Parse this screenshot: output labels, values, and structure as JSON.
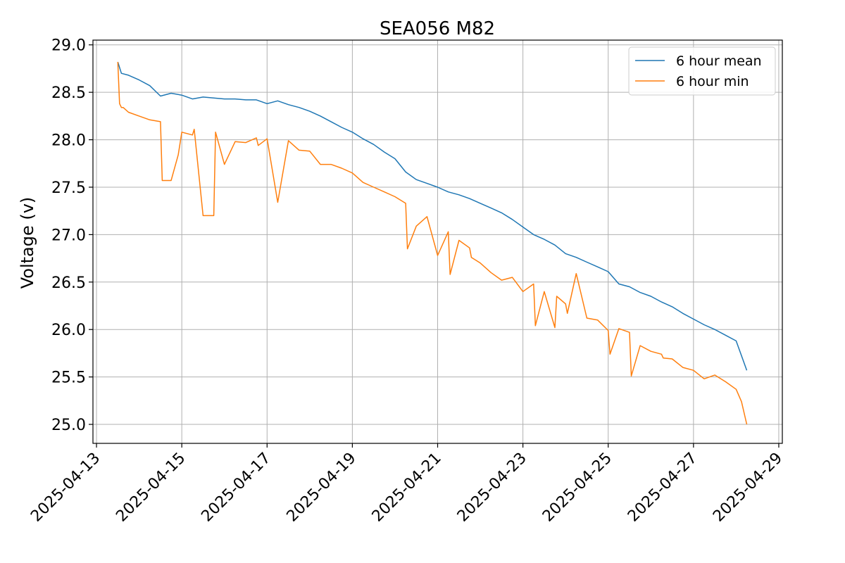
{
  "chart_data": {
    "type": "line",
    "title": "SEA056 M82",
    "xlabel": "",
    "ylabel": "Voltage (v)",
    "x_axis_type": "date",
    "xlim": [
      "2025-04-12 22:00",
      "2025-04-29 02:00"
    ],
    "ylim": [
      24.8,
      29.05
    ],
    "x_ticks": [
      "2025-04-13",
      "2025-04-15",
      "2025-04-17",
      "2025-04-19",
      "2025-04-21",
      "2025-04-23",
      "2025-04-25",
      "2025-04-27",
      "2025-04-29"
    ],
    "y_ticks": [
      "25.0",
      "25.5",
      "26.0",
      "26.5",
      "27.0",
      "27.5",
      "28.0",
      "28.5",
      "29.0"
    ],
    "grid": true,
    "legend_position": "top-right",
    "colors": {
      "mean": "#1f77b4",
      "min": "#ff7f0e"
    },
    "series": [
      {
        "name": "6 hour mean",
        "color": "#1f77b4",
        "x": [
          "2025-04-13 12:00",
          "2025-04-13 14:00",
          "2025-04-13 18:00",
          "2025-04-14 00:00",
          "2025-04-14 06:00",
          "2025-04-14 12:00",
          "2025-04-14 18:00",
          "2025-04-15 00:00",
          "2025-04-15 06:00",
          "2025-04-15 12:00",
          "2025-04-15 18:00",
          "2025-04-16 00:00",
          "2025-04-16 06:00",
          "2025-04-16 12:00",
          "2025-04-16 18:00",
          "2025-04-17 00:00",
          "2025-04-17 06:00",
          "2025-04-17 12:00",
          "2025-04-17 18:00",
          "2025-04-18 00:00",
          "2025-04-18 06:00",
          "2025-04-18 12:00",
          "2025-04-18 18:00",
          "2025-04-19 00:00",
          "2025-04-19 06:00",
          "2025-04-19 12:00",
          "2025-04-19 18:00",
          "2025-04-20 00:00",
          "2025-04-20 06:00",
          "2025-04-20 12:00",
          "2025-04-20 18:00",
          "2025-04-21 00:00",
          "2025-04-21 06:00",
          "2025-04-21 12:00",
          "2025-04-21 18:00",
          "2025-04-22 00:00",
          "2025-04-22 06:00",
          "2025-04-22 12:00",
          "2025-04-22 18:00",
          "2025-04-23 00:00",
          "2025-04-23 06:00",
          "2025-04-23 12:00",
          "2025-04-23 18:00",
          "2025-04-24 00:00",
          "2025-04-24 06:00",
          "2025-04-24 12:00",
          "2025-04-24 18:00",
          "2025-04-25 00:00",
          "2025-04-25 06:00",
          "2025-04-25 12:00",
          "2025-04-25 18:00",
          "2025-04-26 00:00",
          "2025-04-26 06:00",
          "2025-04-26 12:00",
          "2025-04-26 18:00",
          "2025-04-27 00:00",
          "2025-04-27 06:00",
          "2025-04-27 12:00",
          "2025-04-27 18:00",
          "2025-04-28 00:00",
          "2025-04-28 06:00"
        ],
        "y": [
          28.82,
          28.7,
          28.68,
          28.63,
          28.57,
          28.46,
          28.49,
          28.47,
          28.43,
          28.45,
          28.44,
          28.43,
          28.43,
          28.42,
          28.42,
          28.38,
          28.41,
          28.37,
          28.34,
          28.3,
          28.25,
          28.19,
          28.13,
          28.08,
          28.01,
          27.95,
          27.87,
          27.8,
          27.66,
          27.58,
          27.54,
          27.5,
          27.45,
          27.42,
          27.38,
          27.33,
          27.28,
          27.23,
          27.16,
          27.08,
          27.0,
          26.95,
          26.89,
          26.8,
          26.76,
          26.71,
          26.66,
          26.61,
          26.48,
          26.45,
          26.39,
          26.35,
          26.29,
          26.24,
          26.17,
          26.11,
          26.05,
          26.0,
          25.94,
          25.88,
          25.57
        ]
      },
      {
        "name": "6 hour min",
        "color": "#ff7f0e",
        "x": [
          "2025-04-13 12:00",
          "2025-04-13 13:00",
          "2025-04-13 14:00",
          "2025-04-13 15:00",
          "2025-04-13 18:00",
          "2025-04-14 00:00",
          "2025-04-14 06:00",
          "2025-04-14 12:00",
          "2025-04-14 13:00",
          "2025-04-14 18:00",
          "2025-04-14 22:00",
          "2025-04-15 00:00",
          "2025-04-15 06:00",
          "2025-04-15 07:00",
          "2025-04-15 12:00",
          "2025-04-15 18:00",
          "2025-04-15 19:00",
          "2025-04-16 00:00",
          "2025-04-16 06:00",
          "2025-04-16 12:00",
          "2025-04-16 18:00",
          "2025-04-16 19:00",
          "2025-04-17 00:00",
          "2025-04-17 06:00",
          "2025-04-17 12:00",
          "2025-04-17 18:00",
          "2025-04-18 00:00",
          "2025-04-18 06:00",
          "2025-04-18 12:00",
          "2025-04-18 18:00",
          "2025-04-19 00:00",
          "2025-04-19 06:00",
          "2025-04-19 12:00",
          "2025-04-19 18:00",
          "2025-04-20 00:00",
          "2025-04-20 06:00",
          "2025-04-20 07:00",
          "2025-04-20 12:00",
          "2025-04-20 18:00",
          "2025-04-21 00:00",
          "2025-04-21 06:00",
          "2025-04-21 07:00",
          "2025-04-21 12:00",
          "2025-04-21 18:00",
          "2025-04-21 19:00",
          "2025-04-22 00:00",
          "2025-04-22 06:00",
          "2025-04-22 12:00",
          "2025-04-22 18:00",
          "2025-04-23 00:00",
          "2025-04-23 06:00",
          "2025-04-23 07:00",
          "2025-04-23 12:00",
          "2025-04-23 18:00",
          "2025-04-23 19:00",
          "2025-04-24 00:00",
          "2025-04-24 01:00",
          "2025-04-24 06:00",
          "2025-04-24 12:00",
          "2025-04-24 18:00",
          "2025-04-25 00:00",
          "2025-04-25 01:00",
          "2025-04-25 06:00",
          "2025-04-25 12:00",
          "2025-04-25 13:00",
          "2025-04-25 18:00",
          "2025-04-26 00:00",
          "2025-04-26 06:00",
          "2025-04-26 07:00",
          "2025-04-26 12:00",
          "2025-04-26 18:00",
          "2025-04-27 00:00",
          "2025-04-27 06:00",
          "2025-04-27 12:00",
          "2025-04-27 18:00",
          "2025-04-28 00:00",
          "2025-04-28 03:00",
          "2025-04-28 06:00"
        ],
        "y": [
          28.82,
          28.38,
          28.34,
          28.34,
          28.29,
          28.25,
          28.21,
          28.19,
          27.57,
          27.57,
          27.84,
          28.08,
          28.05,
          28.11,
          27.2,
          27.2,
          28.08,
          27.74,
          27.98,
          27.97,
          28.02,
          27.94,
          28.01,
          27.34,
          27.99,
          27.89,
          27.88,
          27.74,
          27.74,
          27.7,
          27.65,
          27.55,
          27.5,
          27.45,
          27.4,
          27.33,
          26.85,
          27.09,
          27.19,
          26.78,
          27.03,
          26.58,
          26.94,
          26.86,
          26.76,
          26.7,
          26.6,
          26.52,
          26.55,
          26.4,
          26.48,
          26.04,
          26.4,
          26.02,
          26.35,
          26.27,
          26.17,
          26.59,
          26.12,
          26.1,
          25.99,
          25.74,
          26.01,
          25.97,
          25.51,
          25.83,
          25.77,
          25.74,
          25.7,
          25.69,
          25.6,
          25.57,
          25.48,
          25.52,
          25.45,
          25.37,
          25.24,
          25.0
        ]
      }
    ]
  }
}
